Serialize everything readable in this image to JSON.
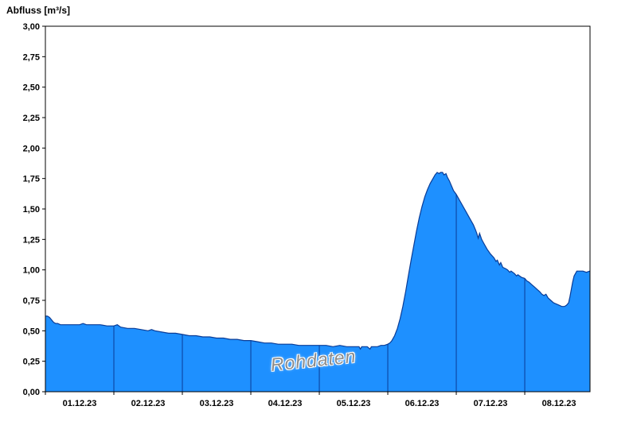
{
  "page": {
    "background": "#ffffff"
  },
  "chart_data": {
    "type": "area",
    "title": "Abfluss [m³/s]",
    "ylabel": "Abfluss [m³/s]",
    "xlabel": "",
    "watermark": "Rohdaten",
    "legend": "none",
    "grid": "vertical day separators drawn inside filled area only",
    "ylim": [
      0,
      3.0
    ],
    "ytick_step": 0.25,
    "ytick_labels": [
      "0,00",
      "0,25",
      "0,50",
      "0,75",
      "1,00",
      "1,25",
      "1,50",
      "1,75",
      "2,00",
      "2,25",
      "2,50",
      "2,75",
      "3,00"
    ],
    "x_categories": [
      "01.12.23",
      "02.12.23",
      "03.12.23",
      "04.12.23",
      "05.12.23",
      "06.12.23",
      "07.12.23",
      "08.12.23"
    ],
    "xlim_days": [
      0,
      7.953
    ],
    "colors": {
      "area_fill": "#1E90FF",
      "area_stroke": "#0a3c96",
      "day_separator": "#0a3c96",
      "axis": "#000000",
      "text": "#000000",
      "watermark": "#8c8c8c"
    },
    "series": [
      {
        "name": "Abfluss Rohdaten",
        "unit": "m³/s",
        "points": [
          [
            0.0,
            0.62
          ],
          [
            0.03,
            0.62
          ],
          [
            0.06,
            0.61
          ],
          [
            0.09,
            0.59
          ],
          [
            0.12,
            0.57
          ],
          [
            0.15,
            0.56
          ],
          [
            0.18,
            0.56
          ],
          [
            0.22,
            0.55
          ],
          [
            0.3,
            0.55
          ],
          [
            0.4,
            0.55
          ],
          [
            0.5,
            0.55
          ],
          [
            0.55,
            0.56
          ],
          [
            0.6,
            0.55
          ],
          [
            0.7,
            0.55
          ],
          [
            0.8,
            0.55
          ],
          [
            0.9,
            0.54
          ],
          [
            1.0,
            0.54
          ],
          [
            1.05,
            0.55
          ],
          [
            1.1,
            0.53
          ],
          [
            1.2,
            0.52
          ],
          [
            1.3,
            0.52
          ],
          [
            1.4,
            0.51
          ],
          [
            1.5,
            0.5
          ],
          [
            1.55,
            0.51
          ],
          [
            1.6,
            0.5
          ],
          [
            1.7,
            0.49
          ],
          [
            1.8,
            0.48
          ],
          [
            1.9,
            0.48
          ],
          [
            2.0,
            0.47
          ],
          [
            2.1,
            0.46
          ],
          [
            2.2,
            0.46
          ],
          [
            2.3,
            0.45
          ],
          [
            2.4,
            0.45
          ],
          [
            2.5,
            0.44
          ],
          [
            2.6,
            0.44
          ],
          [
            2.7,
            0.43
          ],
          [
            2.8,
            0.43
          ],
          [
            2.9,
            0.42
          ],
          [
            3.0,
            0.42
          ],
          [
            3.1,
            0.41
          ],
          [
            3.2,
            0.4
          ],
          [
            3.3,
            0.4
          ],
          [
            3.4,
            0.39
          ],
          [
            3.5,
            0.39
          ],
          [
            3.6,
            0.39
          ],
          [
            3.7,
            0.38
          ],
          [
            3.8,
            0.38
          ],
          [
            3.9,
            0.38
          ],
          [
            4.0,
            0.38
          ],
          [
            4.1,
            0.38
          ],
          [
            4.2,
            0.37
          ],
          [
            4.3,
            0.38
          ],
          [
            4.4,
            0.37
          ],
          [
            4.5,
            0.37
          ],
          [
            4.58,
            0.37
          ],
          [
            4.6,
            0.35
          ],
          [
            4.62,
            0.37
          ],
          [
            4.7,
            0.37
          ],
          [
            4.74,
            0.35
          ],
          [
            4.76,
            0.37
          ],
          [
            4.85,
            0.37
          ],
          [
            4.9,
            0.38
          ],
          [
            4.95,
            0.38
          ],
          [
            5.0,
            0.39
          ],
          [
            5.03,
            0.4
          ],
          [
            5.06,
            0.42
          ],
          [
            5.1,
            0.46
          ],
          [
            5.14,
            0.52
          ],
          [
            5.18,
            0.6
          ],
          [
            5.22,
            0.7
          ],
          [
            5.26,
            0.82
          ],
          [
            5.3,
            0.95
          ],
          [
            5.34,
            1.08
          ],
          [
            5.38,
            1.2
          ],
          [
            5.42,
            1.32
          ],
          [
            5.46,
            1.43
          ],
          [
            5.5,
            1.52
          ],
          [
            5.54,
            1.6
          ],
          [
            5.58,
            1.66
          ],
          [
            5.62,
            1.71
          ],
          [
            5.66,
            1.75
          ],
          [
            5.69,
            1.78
          ],
          [
            5.72,
            1.8
          ],
          [
            5.75,
            1.79
          ],
          [
            5.77,
            1.8
          ],
          [
            5.8,
            1.8
          ],
          [
            5.82,
            1.78
          ],
          [
            5.85,
            1.79
          ],
          [
            5.87,
            1.76
          ],
          [
            5.9,
            1.73
          ],
          [
            5.93,
            1.69
          ],
          [
            5.96,
            1.65
          ],
          [
            6.0,
            1.62
          ],
          [
            6.05,
            1.57
          ],
          [
            6.1,
            1.52
          ],
          [
            6.15,
            1.47
          ],
          [
            6.2,
            1.42
          ],
          [
            6.25,
            1.37
          ],
          [
            6.28,
            1.33
          ],
          [
            6.3,
            1.3
          ],
          [
            6.32,
            1.26
          ],
          [
            6.34,
            1.3
          ],
          [
            6.37,
            1.25
          ],
          [
            6.4,
            1.22
          ],
          [
            6.45,
            1.17
          ],
          [
            6.5,
            1.13
          ],
          [
            6.55,
            1.1
          ],
          [
            6.58,
            1.07
          ],
          [
            6.6,
            1.08
          ],
          [
            6.63,
            1.04
          ],
          [
            6.65,
            1.06
          ],
          [
            6.68,
            1.02
          ],
          [
            6.72,
            1.01
          ],
          [
            6.75,
            1.0
          ],
          [
            6.78,
            0.98
          ],
          [
            6.8,
            0.99
          ],
          [
            6.85,
            0.97
          ],
          [
            6.88,
            0.95
          ],
          [
            6.9,
            0.96
          ],
          [
            6.95,
            0.94
          ],
          [
            7.0,
            0.93
          ],
          [
            7.03,
            0.91
          ],
          [
            7.06,
            0.9
          ],
          [
            7.1,
            0.88
          ],
          [
            7.14,
            0.86
          ],
          [
            7.18,
            0.84
          ],
          [
            7.22,
            0.82
          ],
          [
            7.25,
            0.8
          ],
          [
            7.28,
            0.79
          ],
          [
            7.31,
            0.8
          ],
          [
            7.34,
            0.77
          ],
          [
            7.38,
            0.75
          ],
          [
            7.42,
            0.73
          ],
          [
            7.46,
            0.72
          ],
          [
            7.5,
            0.71
          ],
          [
            7.54,
            0.7
          ],
          [
            7.58,
            0.7
          ],
          [
            7.61,
            0.71
          ],
          [
            7.64,
            0.73
          ],
          [
            7.66,
            0.78
          ],
          [
            7.68,
            0.84
          ],
          [
            7.7,
            0.9
          ],
          [
            7.72,
            0.95
          ],
          [
            7.74,
            0.97
          ],
          [
            7.76,
            0.99
          ],
          [
            7.8,
            0.99
          ],
          [
            7.85,
            0.99
          ],
          [
            7.9,
            0.98
          ],
          [
            7.95,
            0.99
          ]
        ]
      }
    ]
  }
}
